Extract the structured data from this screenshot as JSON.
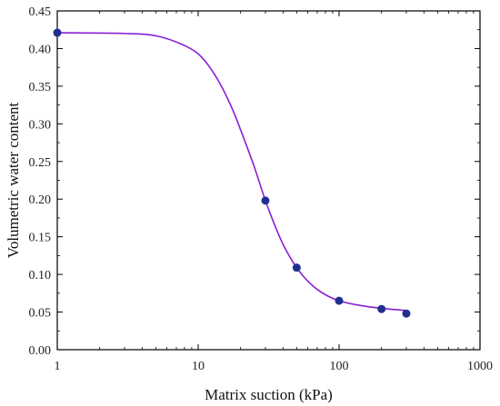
{
  "chart_data": {
    "type": "scatter",
    "xlabel": "Matrix suction (kPa)",
    "ylabel": "Volumetric water content",
    "xscale": "log",
    "xlim": [
      1,
      1000
    ],
    "ylim": [
      0,
      0.45
    ],
    "xticks": [
      {
        "value": 1,
        "label": "1"
      },
      {
        "value": 10,
        "label": "10"
      },
      {
        "value": 100,
        "label": "100"
      },
      {
        "value": 1000,
        "label": "1000"
      }
    ],
    "yticks": [
      {
        "value": 0,
        "label": "0.00"
      },
      {
        "value": 0.05,
        "label": "0.05"
      },
      {
        "value": 0.1,
        "label": "0.10"
      },
      {
        "value": 0.15,
        "label": "0.15"
      },
      {
        "value": 0.2,
        "label": "0.20"
      },
      {
        "value": 0.25,
        "label": "0.25"
      },
      {
        "value": 0.3,
        "label": "0.30"
      },
      {
        "value": 0.35,
        "label": "0.35"
      },
      {
        "value": 0.4,
        "label": "0.40"
      },
      {
        "value": 0.45,
        "label": "0.45"
      }
    ],
    "grid": false,
    "legend": "none",
    "series": [
      {
        "kind": "points",
        "color": "#1f2f8f",
        "x": [
          1,
          30,
          50,
          100,
          200,
          300
        ],
        "y": [
          0.421,
          0.198,
          0.109,
          0.065,
          0.054,
          0.048
        ]
      },
      {
        "kind": "fitted-curve",
        "color": "#8a1fd6",
        "x": [
          1,
          3,
          5,
          8,
          10,
          12,
          15,
          18,
          20,
          25,
          30,
          35,
          40,
          50,
          60,
          70,
          80,
          100,
          150,
          200,
          300
        ],
        "y": [
          0.421,
          0.42,
          0.417,
          0.404,
          0.393,
          0.376,
          0.346,
          0.314,
          0.292,
          0.243,
          0.198,
          0.165,
          0.14,
          0.109,
          0.091,
          0.08,
          0.073,
          0.065,
          0.058,
          0.055,
          0.052
        ]
      }
    ]
  }
}
